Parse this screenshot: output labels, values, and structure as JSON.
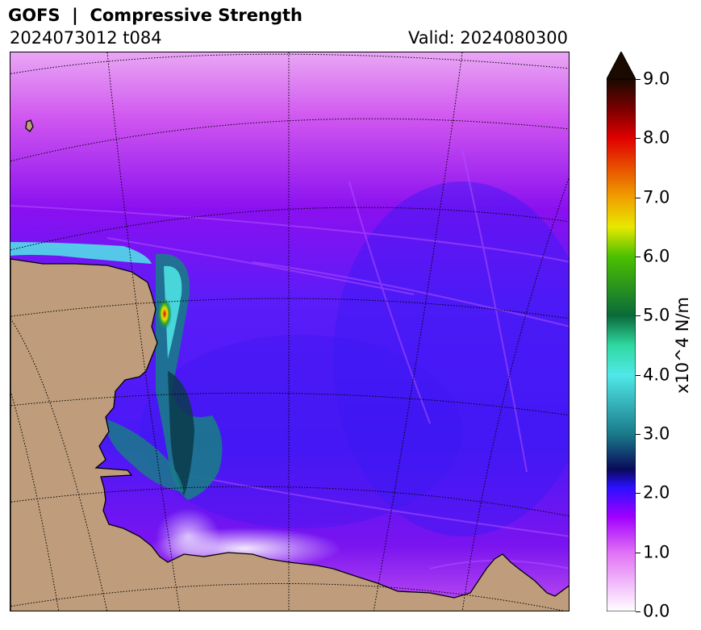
{
  "header": {
    "title": "GOFS  |  Compressive Strength",
    "run": "2024073012 t084",
    "valid": "Valid: 2024080300"
  },
  "colorbar": {
    "label": "x10^4 N/m",
    "ticks": [
      "0.0",
      "1.0",
      "2.0",
      "3.0",
      "4.0",
      "5.0",
      "6.0",
      "7.0",
      "8.0",
      "9.0"
    ],
    "min": 0.0,
    "max": 9.0,
    "extend": "max",
    "stops": [
      {
        "v": 0.0,
        "c": "#ffffff"
      },
      {
        "v": 1.0,
        "c": "#e070f5"
      },
      {
        "v": 1.6,
        "c": "#a000ff"
      },
      {
        "v": 2.1,
        "c": "#2a10ff"
      },
      {
        "v": 2.4,
        "c": "#0a0a5a"
      },
      {
        "v": 3.0,
        "c": "#1a7a8a"
      },
      {
        "v": 4.0,
        "c": "#50e8e8"
      },
      {
        "v": 4.5,
        "c": "#30d8a0"
      },
      {
        "v": 5.0,
        "c": "#0a6a3a"
      },
      {
        "v": 6.0,
        "c": "#4cc000"
      },
      {
        "v": 6.5,
        "c": "#e8e800"
      },
      {
        "v": 7.0,
        "c": "#f0a000"
      },
      {
        "v": 8.0,
        "c": "#e00000"
      },
      {
        "v": 8.5,
        "c": "#7a0000"
      },
      {
        "v": 9.0,
        "c": "#1a0a00"
      }
    ]
  },
  "map": {
    "land_color": "#bf9d7c",
    "coast_color": "#000000"
  }
}
